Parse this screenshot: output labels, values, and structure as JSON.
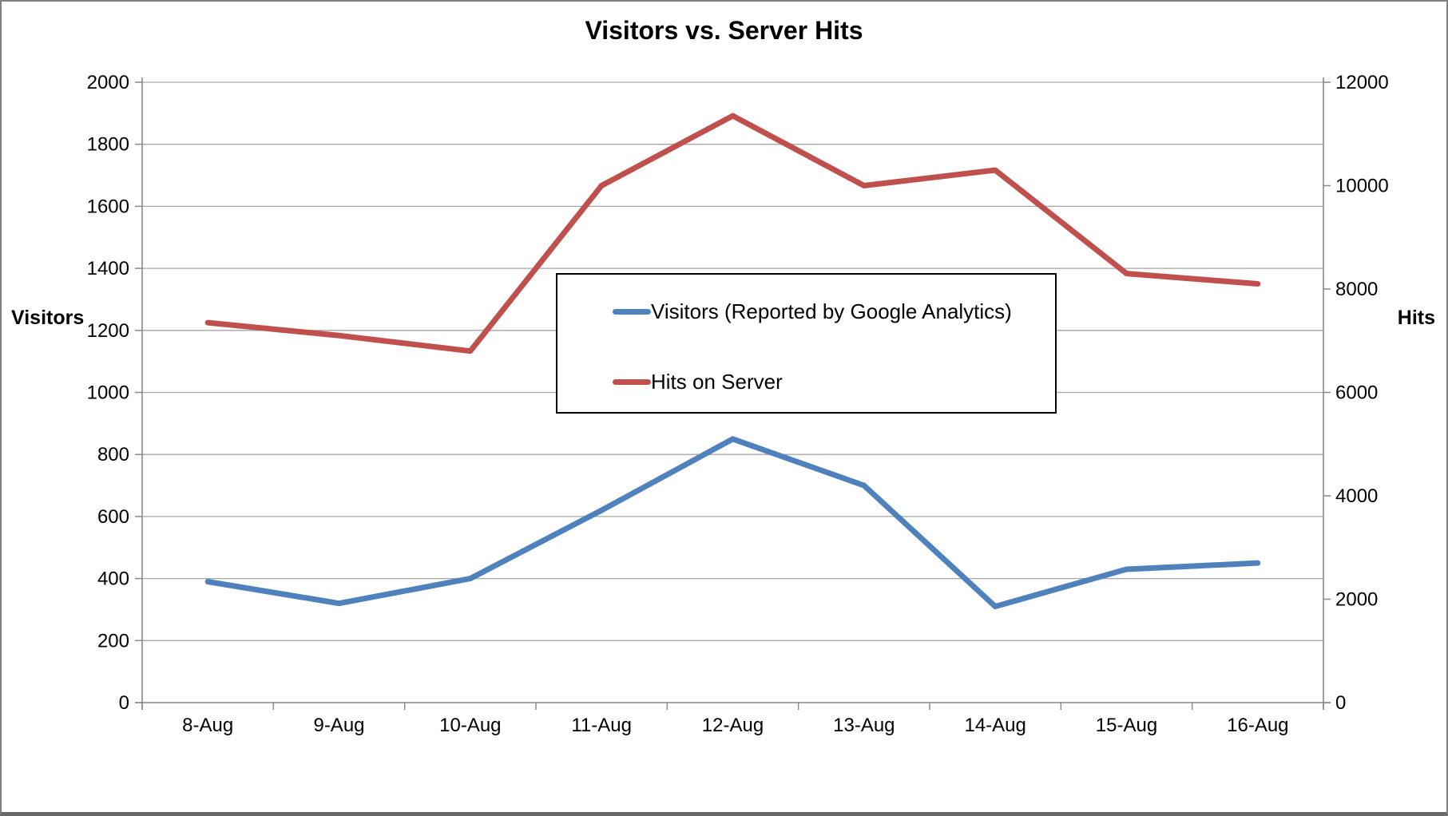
{
  "chart_data": {
    "type": "line",
    "title": "Visitors vs. Server Hits",
    "categories": [
      "8-Aug",
      "9-Aug",
      "10-Aug",
      "11-Aug",
      "12-Aug",
      "13-Aug",
      "14-Aug",
      "15-Aug",
      "16-Aug"
    ],
    "series": [
      {
        "name": "Visitors (Reported by Google Analytics)",
        "axis": "left",
        "color": "#4f81bd",
        "values": [
          390,
          320,
          400,
          620,
          850,
          700,
          310,
          430,
          450
        ]
      },
      {
        "name": "Hits on Server",
        "axis": "right",
        "color": "#c0504d",
        "values": [
          7350,
          7100,
          6800,
          10000,
          11350,
          10000,
          10300,
          8300,
          8100
        ]
      }
    ],
    "left_axis": {
      "label": "Visitors",
      "min": 0,
      "max": 2000,
      "step": 200,
      "tick_labels": [
        "0",
        "200",
        "400",
        "600",
        "800",
        "1000",
        "1200",
        "1400",
        "1600",
        "1800",
        "2000"
      ]
    },
    "right_axis": {
      "label": "Hits",
      "min": 0,
      "max": 12000,
      "step": 2000,
      "tick_labels": [
        "0",
        "2000",
        "4000",
        "6000",
        "8000",
        "10000",
        "12000"
      ]
    },
    "grid": true,
    "legend_position": "center"
  },
  "colors": {
    "gridline": "#a6a6a6",
    "axis_line": "#898989",
    "tick_text": "#000000",
    "legend_border": "#000000",
    "background": "#ffffff",
    "frame_border": "#808080"
  }
}
